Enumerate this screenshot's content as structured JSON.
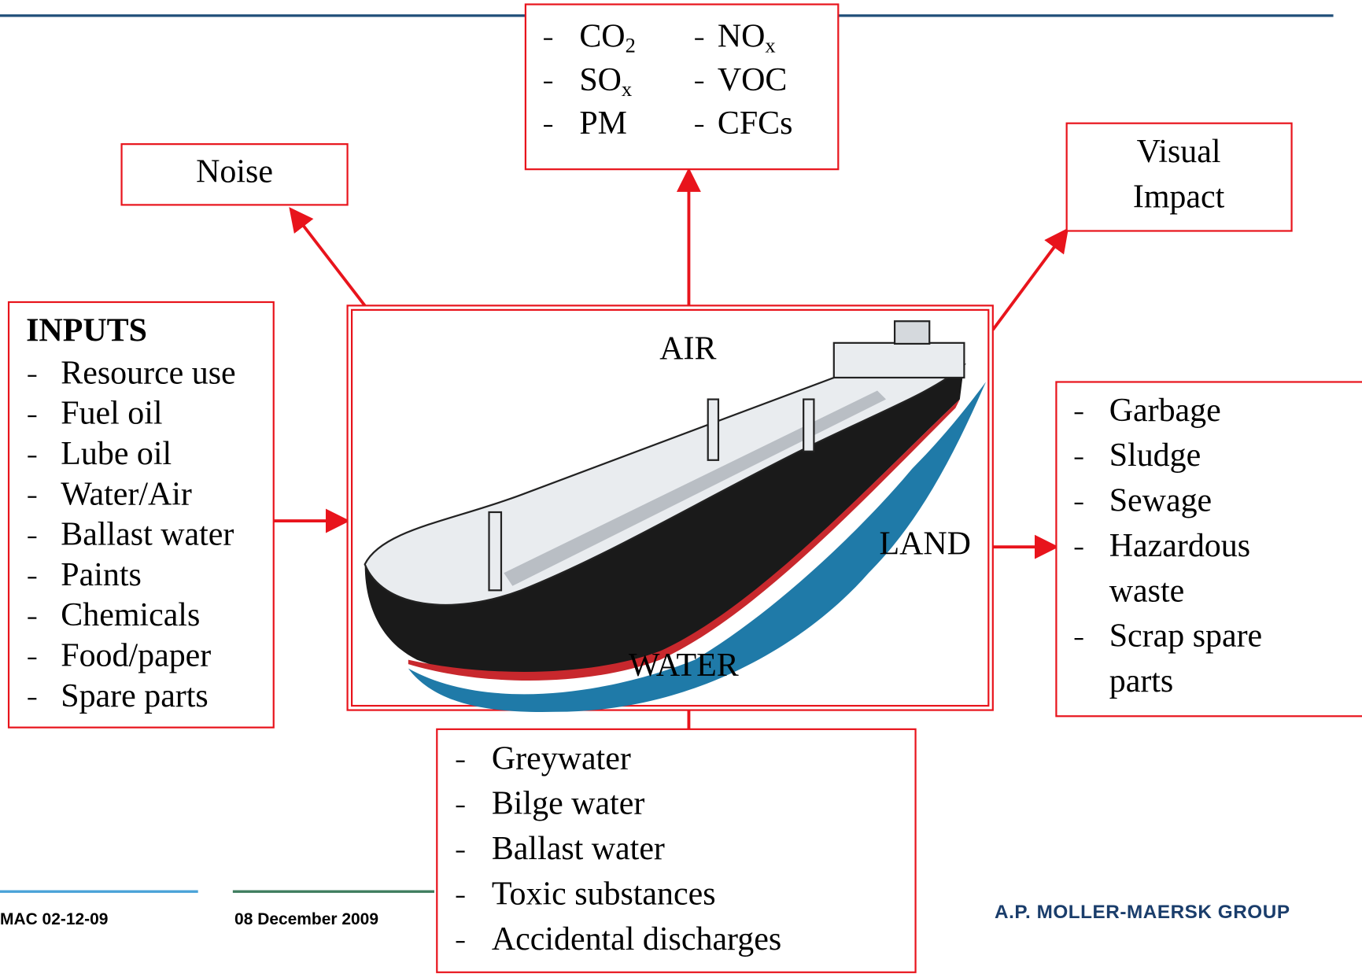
{
  "emissions": {
    "items": [
      {
        "text": "CO",
        "sub": "2"
      },
      {
        "text": "NO",
        "sub": "x"
      },
      {
        "text": "SO",
        "sub": "x"
      },
      {
        "text": "VOC"
      },
      {
        "text": "PM"
      },
      {
        "text": "CFCs"
      }
    ]
  },
  "noise": "Noise",
  "visual_impact": [
    "Visual",
    "Impact"
  ],
  "inputs": {
    "title": "INPUTS",
    "items": [
      "Resource use",
      "Fuel oil",
      "Lube oil",
      "Water/Air",
      "Ballast water",
      "Paints",
      "Chemicals",
      "Food/paper",
      "Spare parts"
    ]
  },
  "center": {
    "air": "AIR",
    "land": "LAND",
    "water": "WATER"
  },
  "land_outputs": [
    [
      "Garbage"
    ],
    [
      "Sludge"
    ],
    [
      "Sewage"
    ],
    [
      "Hazardous",
      "waste"
    ],
    [
      "Scrap spare",
      "parts"
    ]
  ],
  "water_outputs": [
    "Greywater",
    "Bilge water",
    "Ballast water",
    "Toxic substances",
    "Accidental discharges"
  ],
  "footer": {
    "code": "MAC 02-12-09",
    "date": "08 December 2009",
    "company": "A.P. MOLLER-MAERSK GROUP"
  }
}
